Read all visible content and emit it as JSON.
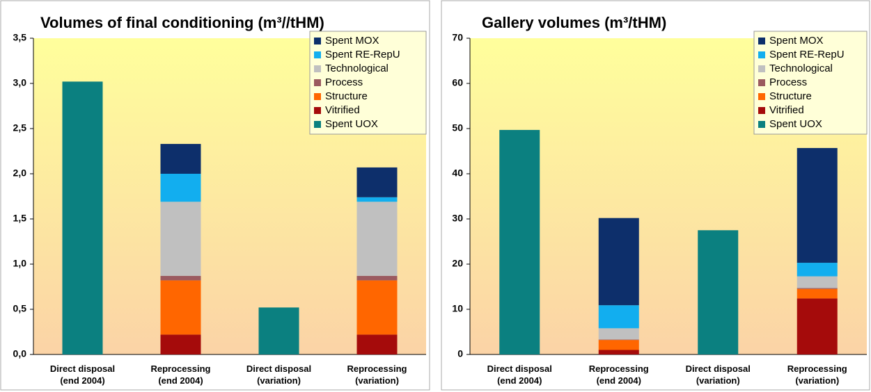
{
  "chart_data": [
    {
      "type": "stacked_bar",
      "title": "Volumes of final conditioning (m³//tHM)",
      "categories": [
        "Direct disposal\n(end 2004)",
        "Reprocessing\n(end 2004)",
        "Direct disposal\n(variation)",
        "Reprocessing\n(variation)"
      ],
      "series": [
        {
          "name": "Spent UOX",
          "color": "#0b8080",
          "values": [
            3.02,
            0,
            0.52,
            0
          ]
        },
        {
          "name": "Vitrified",
          "color": "#a50b0b",
          "values": [
            0,
            0.22,
            0,
            0.22
          ]
        },
        {
          "name": "Structure",
          "color": "#ff6600",
          "values": [
            0,
            0.6,
            0,
            0.6
          ]
        },
        {
          "name": "Process",
          "color": "#9b5a60",
          "values": [
            0,
            0.05,
            0,
            0.05
          ]
        },
        {
          "name": "Technological",
          "color": "#c0c0c0",
          "values": [
            0,
            0.82,
            0,
            0.82
          ]
        },
        {
          "name": "Spent RE-RepU",
          "color": "#12aeef",
          "values": [
            0,
            0.31,
            0,
            0.05
          ]
        },
        {
          "name": "Spent MOX",
          "color": "#0d2f6b",
          "values": [
            0,
            0.33,
            0,
            0.33
          ]
        }
      ],
      "ylim": [
        0,
        3.5
      ],
      "yticks": [
        {
          "value": 0,
          "label": "0,0"
        },
        {
          "value": 0.5,
          "label": "0,5"
        },
        {
          "value": 1,
          "label": "1,0"
        },
        {
          "value": 1.5,
          "label": "1,5"
        },
        {
          "value": 2,
          "label": "2,0"
        },
        {
          "value": 2.5,
          "label": "2,5"
        },
        {
          "value": 3,
          "label": "3,0"
        },
        {
          "value": 3.5,
          "label": "3,5"
        }
      ],
      "legend": "top-right"
    },
    {
      "type": "stacked_bar",
      "title": "Gallery volumes (m³/tHM)",
      "categories": [
        "Direct disposal\n(end 2004)",
        "Reprocessing\n(end 2004)",
        "Direct disposal\n(variation)",
        "Reprocessing\n(variation)"
      ],
      "series": [
        {
          "name": "Spent UOX",
          "color": "#0b8080",
          "values": [
            49.7,
            0,
            27.5,
            0
          ]
        },
        {
          "name": "Vitrified",
          "color": "#a50b0b",
          "values": [
            0,
            1.0,
            0,
            12.4
          ]
        },
        {
          "name": "Structure",
          "color": "#ff6600",
          "values": [
            0,
            2.2,
            0,
            2.1
          ]
        },
        {
          "name": "Process",
          "color": "#9b5a60",
          "values": [
            0,
            0.1,
            0,
            0.2
          ]
        },
        {
          "name": "Technological",
          "color": "#c0c0c0",
          "values": [
            0,
            2.5,
            0,
            2.6
          ]
        },
        {
          "name": "Spent RE-RepU",
          "color": "#12aeef",
          "values": [
            0,
            5.1,
            0,
            3.0
          ]
        },
        {
          "name": "Spent MOX",
          "color": "#0d2f6b",
          "values": [
            0,
            19.3,
            0,
            25.4
          ]
        }
      ],
      "ylim": [
        0,
        70
      ],
      "yticks": [
        0,
        10,
        20,
        30,
        40,
        50,
        60,
        70
      ],
      "legend": "top-right"
    }
  ]
}
